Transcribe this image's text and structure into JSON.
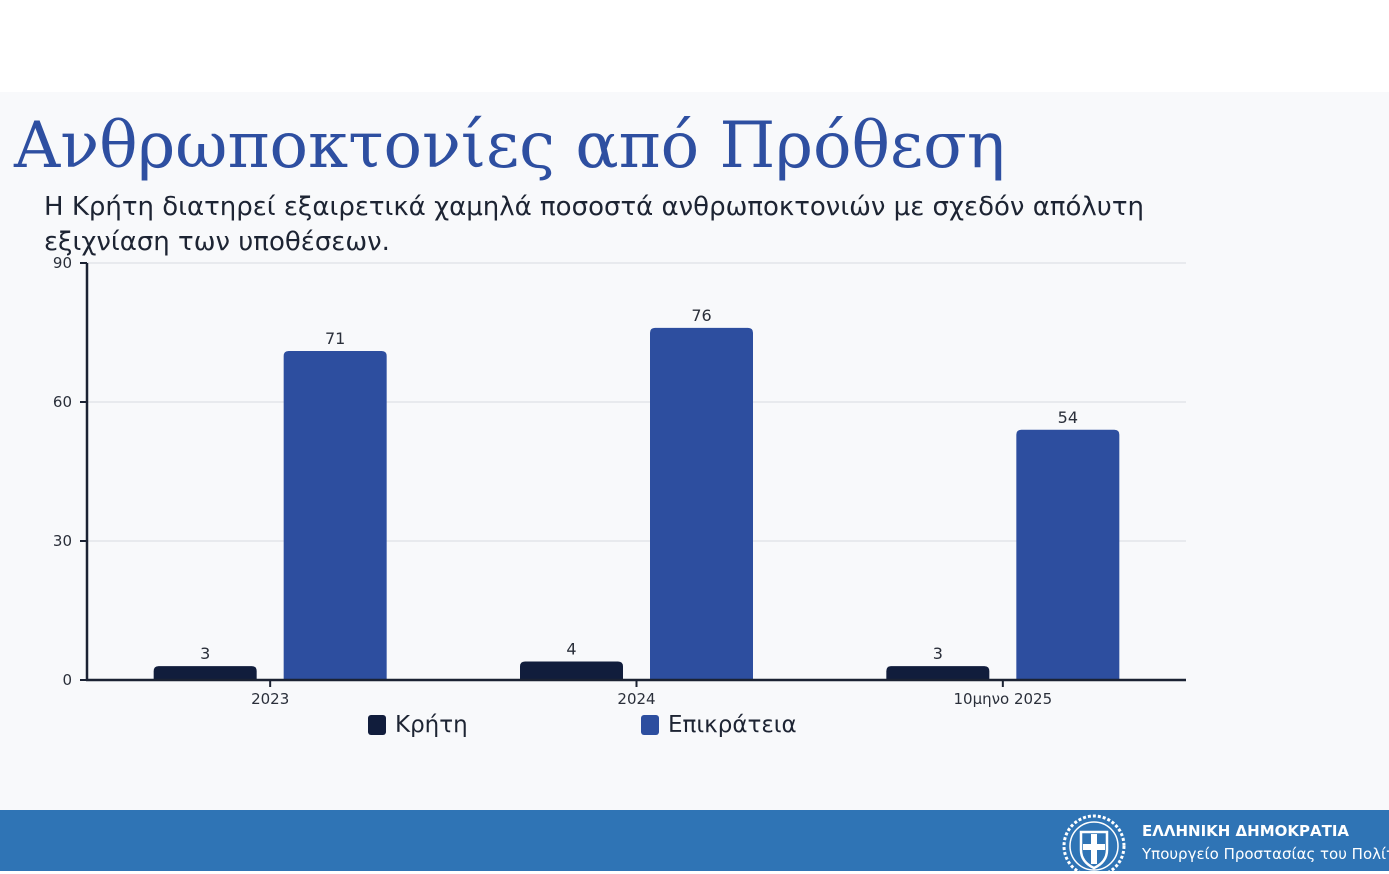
{
  "page": {
    "title": "Ανθρωποκτονίες από Πρόθεση",
    "subtitle": "Η Κρήτη διατηρεί εξαιρετικά χαμηλά ποσοστά ανθρωποκτονιών με σχεδόν απόλυτη εξιχνίαση των υποθέσεων."
  },
  "footer": {
    "line1": "ΕΛΛΗΝΙΚΗ ΔΗΜΟΚΡΑΤΙΑ",
    "line2": "Υπουργείο Προστασίας του Πολίτη",
    "icon": "greek-coat-of-arms-icon"
  },
  "colors": {
    "accent": "#2e4fa1",
    "footer": "#2f74b5",
    "crete": "#111d3c",
    "mainland": "#2d4e9f"
  },
  "chart_data": {
    "type": "bar",
    "categories": [
      "2023",
      "2024",
      "10μηνο 2025"
    ],
    "series": [
      {
        "name": "Κρήτη",
        "values": [
          3,
          4,
          3
        ],
        "color": "#111d3c"
      },
      {
        "name": "Επικράτεια",
        "values": [
          71,
          76,
          54
        ],
        "color": "#2d4e9f"
      }
    ],
    "ylim": [
      0,
      90
    ],
    "yticks": [
      "0",
      "30",
      "60",
      "90"
    ],
    "grid": true,
    "legend_position": "bottom",
    "data_labels": true
  }
}
